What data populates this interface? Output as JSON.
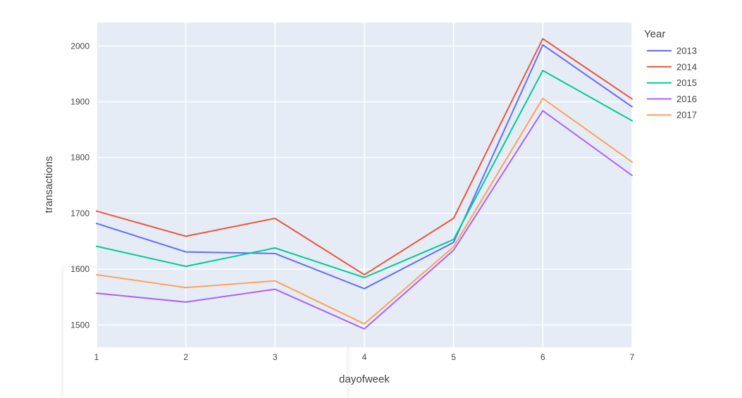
{
  "chart_data": {
    "type": "line",
    "title": "",
    "xlabel": "dayofweek",
    "ylabel": "transactions",
    "xlim": [
      1,
      7
    ],
    "ylim": [
      1460,
      2042
    ],
    "x": [
      1,
      2,
      3,
      4,
      5,
      6,
      7
    ],
    "x_ticks": [
      1,
      2,
      3,
      4,
      5,
      6,
      7
    ],
    "y_ticks": [
      1500,
      1600,
      1700,
      1800,
      1900,
      2000
    ],
    "grid": true,
    "legend_title": "Year",
    "legend_position": "top-right",
    "series": [
      {
        "name": "2013",
        "color": "#636EFA",
        "values": [
          1682,
          1631,
          1628,
          1565,
          1648,
          2002,
          1891
        ]
      },
      {
        "name": "2014",
        "color": "#EF553B",
        "values": [
          1704,
          1659,
          1691,
          1590,
          1691,
          2013,
          1905
        ]
      },
      {
        "name": "2015",
        "color": "#00CC96",
        "values": [
          1641,
          1605,
          1638,
          1585,
          1653,
          1956,
          1866
        ]
      },
      {
        "name": "2016",
        "color": "#AB63FA",
        "values": [
          1557,
          1541,
          1564,
          1493,
          1634,
          1884,
          1768
        ]
      },
      {
        "name": "2017",
        "color": "#FFA15A",
        "values": [
          1590,
          1567,
          1579,
          1502,
          1640,
          1906,
          1792
        ]
      }
    ]
  }
}
